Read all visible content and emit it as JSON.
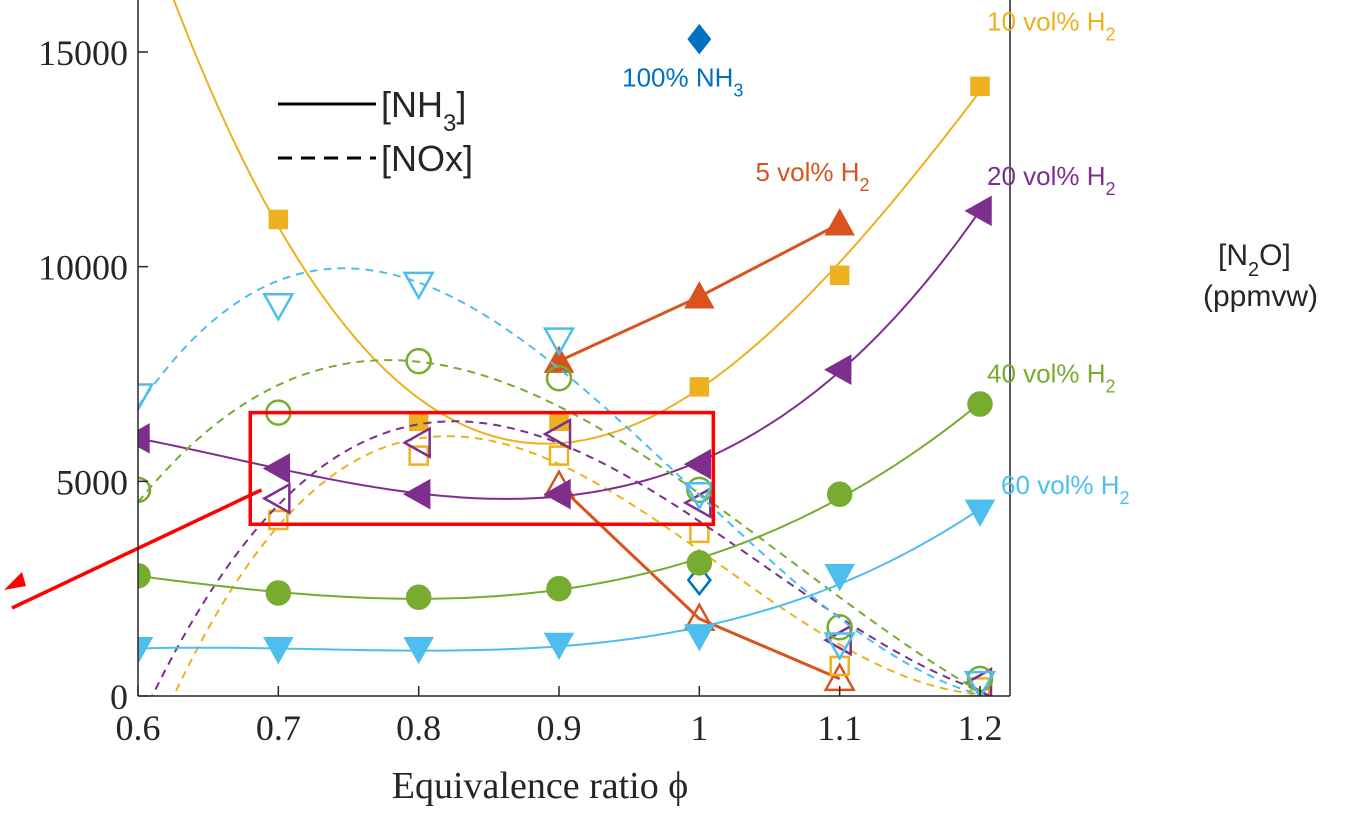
{
  "chart_data": {
    "type": "line",
    "title": "",
    "xlabel": "Equivalence ratio ϕ",
    "ylabel": "",
    "right_axis_label": {
      "line1": "[N",
      "sub1": "2",
      "line1_end": "O]",
      "line2": "(ppmvw)"
    },
    "xlim": [
      0.6,
      1.22
    ],
    "ylim": [
      0,
      16000
    ],
    "x_ticks": [
      0.6,
      0.7,
      0.8,
      0.9,
      1,
      1.1,
      1.2
    ],
    "x_tick_labels": [
      "0.6",
      "0.7",
      "0.8",
      "0.9",
      "1",
      "1.1",
      "1.2"
    ],
    "y_ticks": [
      0,
      5000,
      10000,
      15000
    ],
    "y_tick_labels": [
      "0",
      "5000",
      "10000",
      "15000"
    ],
    "grid": false,
    "line_style_legend": [
      {
        "label": "[NH",
        "sub": "3",
        "end": "]",
        "style": "solid"
      },
      {
        "label": "[NOx]",
        "sub": "",
        "end": "",
        "style": "dashed"
      }
    ],
    "highlight_box": {
      "x": [
        0.68,
        1.01
      ],
      "y": [
        4000,
        6600
      ],
      "color": "#ff0000"
    },
    "series": [
      {
        "name": "100% NH",
        "sub": "3",
        "suffix": "",
        "color": "#0070c0",
        "marker": "diamond",
        "label_pos": {
          "x": 0.945,
          "y": 14200
        },
        "nh3": {
          "x": [
            1.0
          ],
          "y": [
            15300
          ]
        },
        "nox": {
          "x": [
            1.0
          ],
          "y": [
            2700
          ]
        }
      },
      {
        "name": "5 vol% H",
        "sub": "2",
        "suffix": "",
        "color": "#d9531e",
        "marker": "triangle-up",
        "label_pos": {
          "x": 1.04,
          "y": 12000
        },
        "nh3": {
          "x": [
            0.9,
            1.0,
            1.1
          ],
          "y": [
            7800,
            9300,
            11000
          ]
        },
        "nox": {
          "x": [
            0.9,
            1.0,
            1.1
          ],
          "y": [
            4900,
            1800,
            400
          ]
        }
      },
      {
        "name": "10 vol% H",
        "sub": "2",
        "suffix": "",
        "color": "#edb120",
        "marker": "square",
        "label_pos": {
          "x": 1.205,
          "y": 15500
        },
        "nh3": {
          "x": [
            0.7,
            0.8,
            0.9,
            1.0,
            1.1,
            1.2
          ],
          "y": [
            11100,
            6400,
            6400,
            7200,
            9800,
            14200
          ]
        },
        "nox": {
          "x": [
            0.7,
            0.8,
            0.9,
            1.0,
            1.1,
            1.2
          ],
          "y": [
            4100,
            5600,
            5600,
            3800,
            700,
            200
          ]
        }
      },
      {
        "name": "20 vol% H",
        "sub": "2",
        "suffix": "",
        "color": "#7e2f8e",
        "marker": "triangle-left",
        "label_pos": {
          "x": 1.205,
          "y": 11900
        },
        "nh3": {
          "x": [
            0.6,
            0.7,
            0.8,
            0.9,
            1.0,
            1.1,
            1.2
          ],
          "y": [
            6000,
            5300,
            4700,
            4700,
            5400,
            7600,
            11300
          ]
        },
        "nox": {
          "x": [
            0.7,
            0.8,
            0.9,
            1.0,
            1.1,
            1.2
          ],
          "y": [
            4600,
            5900,
            6100,
            4500,
            1300,
            300
          ]
        }
      },
      {
        "name": "40 vol% H",
        "sub": "2",
        "suffix": "",
        "color": "#77ac30",
        "marker": "circle",
        "label_pos": {
          "x": 1.205,
          "y": 7300
        },
        "nh3": {
          "x": [
            0.6,
            0.7,
            0.8,
            0.9,
            1.0,
            1.1,
            1.2
          ],
          "y": [
            2800,
            2400,
            2300,
            2500,
            3100,
            4700,
            6800
          ]
        },
        "nox": {
          "x": [
            0.6,
            0.7,
            0.8,
            0.9,
            1.0,
            1.1,
            1.2
          ],
          "y": [
            4800,
            6600,
            7800,
            7400,
            4800,
            1600,
            400
          ]
        }
      },
      {
        "name": "60 vol% H",
        "sub": "2",
        "suffix": "",
        "color": "#4dbeee",
        "marker": "triangle-down",
        "label_pos": {
          "x": 1.215,
          "y": 4700
        },
        "nh3": {
          "x": [
            0.6,
            0.7,
            0.8,
            0.9,
            1.0,
            1.1,
            1.2
          ],
          "y": [
            1100,
            1100,
            1100,
            1200,
            1400,
            2800,
            4300
          ]
        },
        "nox": {
          "x": [
            0.6,
            0.7,
            0.8,
            0.9,
            1.0,
            1.1,
            1.2
          ],
          "y": [
            7000,
            9100,
            9600,
            8300,
            4700,
            1200,
            300
          ]
        }
      }
    ]
  }
}
